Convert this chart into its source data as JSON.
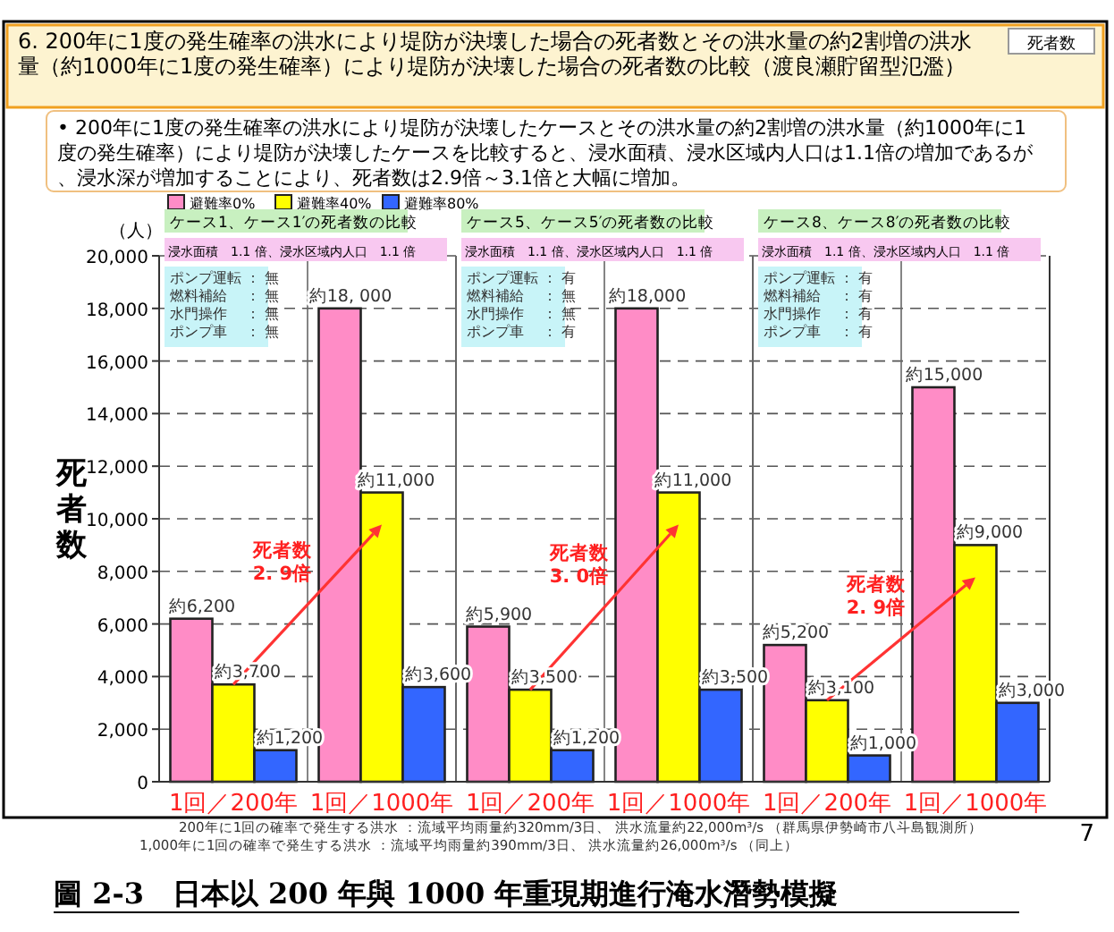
{
  "chart_data": {
    "type": "bar",
    "title": "6. 200年に1度の発生確率の洪水により堤防が決壊した場合の死者数とその洪水量の約2割増の洪水量（約1000年に1度の発生確率）により堤防が決壊した場合の死者数の比較（渡良瀬貯留型氾濫）",
    "subtitle": "• 200年に1度の発生確率の洪水により堤防が決壊したケースとその洪水量の約2割増の洪水量（約1000年に1度の発生確率）により堤防が決壊したケースを比較すると、浸水面積、浸水区域内人口は1.1倍の増加であるが、浸水深が増加することにより、死者数は2.9倍～3.1倍と大幅に増加。",
    "ylabel": "死者数",
    "categories": [
      "1回／200年",
      "1回／1000年",
      "1回／200年",
      "1回／1000年",
      "1回／200年",
      "1回／1000年"
    ],
    "series": [
      {
        "name": "避難率0%",
        "color": "#ff8cc6",
        "values": [
          6200,
          18000,
          5900,
          18000,
          5200,
          15000
        ],
        "value_labels": [
          "約6,200",
          "約18, 000",
          "約5,900",
          "約18,000",
          "約5,200",
          "約15,000"
        ]
      },
      {
        "name": "避難率40%",
        "color": "#ffff00",
        "values": [
          3700,
          11000,
          3500,
          11000,
          3100,
          9000
        ],
        "value_labels": [
          "約3,700",
          "約11,000",
          "約3,500",
          "約11,000",
          "約3,100",
          "約9,000"
        ]
      },
      {
        "name": "避難率80%",
        "color": "#3366ff",
        "values": [
          1200,
          3600,
          1200,
          3500,
          1000,
          3000
        ],
        "value_labels": [
          "約1,200",
          "約3,600",
          "約1,200",
          "約3,500",
          "約1,000",
          "約3,000"
        ]
      }
    ],
    "ylim": [
      0,
      20000
    ],
    "yticks": [
      0,
      {
        "value": 2000,
        "label": "2,000"
      },
      {
        "value": 4000,
        "label": "4,000"
      },
      {
        "value": 6000,
        "label": "6,000"
      },
      {
        "value": 8000,
        "label": "8,000"
      },
      {
        "value": 10000,
        "label": "10,000"
      },
      {
        "value": 12000,
        "label": "12,000"
      },
      {
        "value": 14000,
        "label": "14,000"
      },
      {
        "value": 16000,
        "label": "16,000"
      },
      {
        "value": 18000,
        "label": "18,000"
      },
      {
        "value": 20000,
        "label": "20,000"
      }
    ],
    "grid": "y",
    "legend": "top left",
    "annotations": [
      "死者数",
      "（人）",
      "ケース1、ケース1′の死者数の比較",
      "ケース5、ケース5′の死者数の比較",
      "ケース8、ケース8′の死者数の比較",
      "浸水面積　1.1 倍、浸水区域内人口　1.1 倍",
      "浸水面積　1.1 倍、浸水区域内人口　1.1 倍",
      "浸水面積　1.1 倍、浸水区域内人口　1.1 倍",
      "ポンプ運転 ： 無",
      "燃料補給　 ： 無",
      "水門操作　 ： 無",
      "ポンプ車　 ： 無",
      "ポンプ運転 ： 有",
      "燃料補給　 ： 無",
      "水門操作　 ： 無",
      "ポンプ車　 ： 有",
      "ポンプ運転 ： 有",
      "燃料補給　 ： 有",
      "水門操作　 ： 有",
      "ポンプ車　 ： 有",
      "死者数\n2. 9倍",
      "死者数\n3. 0倍",
      "死者数\n2. 9倍",
      "200年に1回の確率で発生する洪水 ：流域平均雨量約320mm/3日、 洪水流量約22,000m³/s （群馬県伊勢崎市八斗島観測所）",
      "1,000年に1回の確率で発生する洪水 ：流域平均雨量約390mm/3日、 洪水流量約26,000m³/s （同上）",
      "7",
      "圖 2-3　日本以 200 年與 1000 年重現期進行淹水潛勢模擬"
    ]
  }
}
